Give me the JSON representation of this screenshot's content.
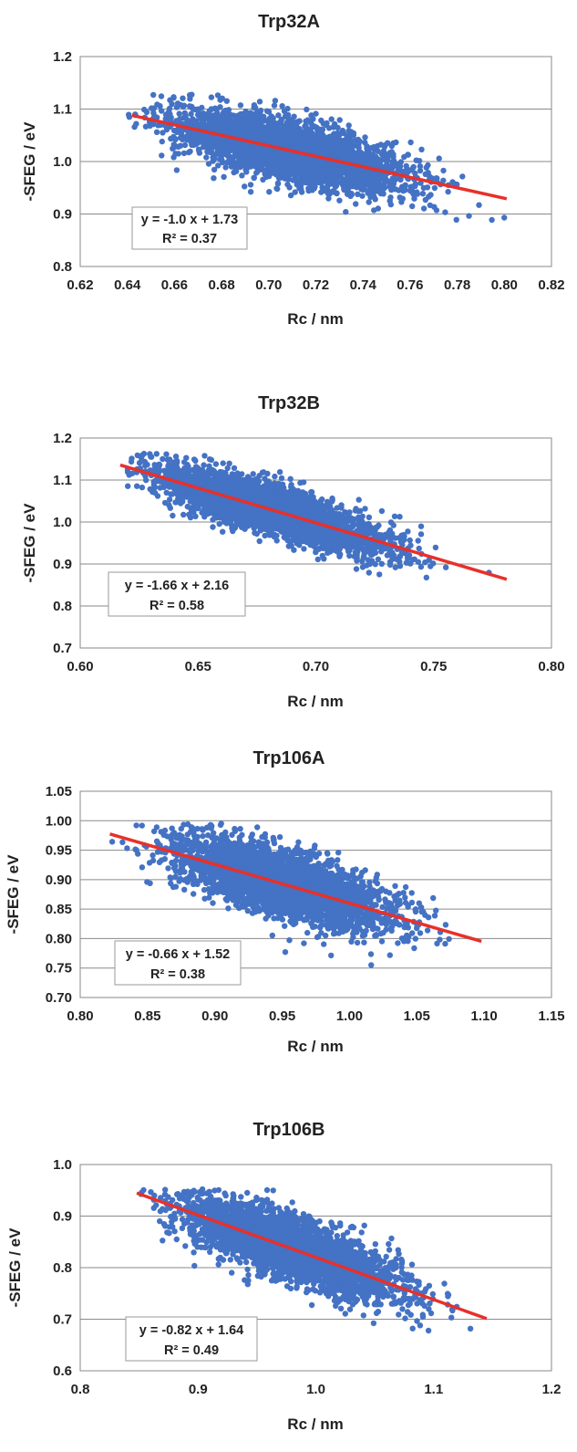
{
  "chart_data": [
    {
      "type": "scatter",
      "title": "Trp32A",
      "xlabel": "Rc / nm",
      "ylabel": "-SFEG / eV",
      "xlim": [
        0.62,
        0.82
      ],
      "ylim": [
        0.8,
        1.2
      ],
      "xticks": [
        "0.62",
        "0.64",
        "0.66",
        "0.68",
        "0.70",
        "0.72",
        "0.74",
        "0.76",
        "0.78",
        "0.80",
        "0.82"
      ],
      "yticks": [
        "0.8",
        "0.9",
        "1.0",
        "1.1",
        "1.2"
      ],
      "grid": "horizontal",
      "point_color": "#4472C4",
      "cloud": {
        "x_center": 0.71,
        "x_range": [
          0.64,
          0.8
        ],
        "y_range": [
          0.88,
          1.135
        ],
        "x_sd": 0.025,
        "y_resid_sd": 0.027
      },
      "fit": {
        "slope": -1.0,
        "intercept": 1.73,
        "x_range": [
          0.642,
          0.801
        ],
        "color": "#E8302A"
      },
      "equation": "y = -1.0 x + 1.73",
      "r2": "R² = 0.37"
    },
    {
      "type": "scatter",
      "title": "Trp32B",
      "xlabel": "Rc / nm",
      "ylabel": "-SFEG / eV",
      "xlim": [
        0.6,
        0.8
      ],
      "ylim": [
        0.7,
        1.2
      ],
      "xticks": [
        "0.60",
        "0.65",
        "0.70",
        "0.75",
        "0.80"
      ],
      "yticks": [
        "0.7",
        "0.8",
        "0.9",
        "1.0",
        "1.1",
        "1.2"
      ],
      "grid": "horizontal",
      "point_color": "#4472C4",
      "cloud": {
        "x_center": 0.68,
        "x_range": [
          0.62,
          0.78
        ],
        "y_range": [
          0.78,
          1.165
        ],
        "x_sd": 0.024,
        "y_resid_sd": 0.028
      },
      "fit": {
        "slope": -1.66,
        "intercept": 2.16,
        "x_range": [
          0.617,
          0.781
        ],
        "color": "#E8302A"
      },
      "equation": "y = -1.66 x + 2.16",
      "r2": "R² = 0.58"
    },
    {
      "type": "scatter",
      "title": "Trp106A",
      "xlabel": "Rc / nm",
      "ylabel": "-SFEG / eV",
      "xlim": [
        0.8,
        1.15
      ],
      "ylim": [
        0.7,
        1.05
      ],
      "xticks": [
        "0.80",
        "0.85",
        "0.90",
        "0.95",
        "1.00",
        "1.05",
        "1.10",
        "1.15"
      ],
      "yticks": [
        "0.70",
        "0.75",
        "0.80",
        "0.85",
        "0.90",
        "0.95",
        "1.00",
        "1.05"
      ],
      "grid": "horizontal",
      "point_color": "#4472C4",
      "cloud": {
        "x_center": 0.95,
        "x_range": [
          0.82,
          1.1
        ],
        "y_range": [
          0.73,
          0.995
        ],
        "x_sd": 0.038,
        "y_resid_sd": 0.027
      },
      "fit": {
        "slope": -0.66,
        "intercept": 1.52,
        "x_range": [
          0.822,
          1.098
        ],
        "color": "#E8302A"
      },
      "equation": "y = -0.66 x + 1.52",
      "r2": "R² = 0.38"
    },
    {
      "type": "scatter",
      "title": "Trp106B",
      "xlabel": "Rc / nm",
      "ylabel": "-SFEG / eV",
      "xlim": [
        0.8,
        1.2
      ],
      "ylim": [
        0.6,
        1.0
      ],
      "xticks": [
        "0.8",
        "0.9",
        "1.0",
        "1.1",
        "1.2"
      ],
      "yticks": [
        "0.6",
        "0.7",
        "0.8",
        "0.9",
        "1.0"
      ],
      "grid": "horizontal",
      "point_color": "#4472C4",
      "cloud": {
        "x_center": 0.98,
        "x_range": [
          0.85,
          1.145
        ],
        "y_range": [
          0.61,
          0.955
        ],
        "x_sd": 0.045,
        "y_resid_sd": 0.03
      },
      "fit": {
        "slope": -0.82,
        "intercept": 1.64,
        "x_range": [
          0.848,
          1.145
        ],
        "color": "#E8302A"
      },
      "equation": "y = -0.82 x + 1.64",
      "r2": "R² = 0.49"
    }
  ]
}
